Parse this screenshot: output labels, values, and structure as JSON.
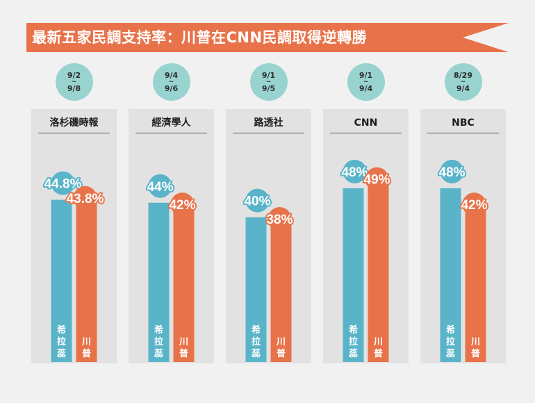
{
  "title": "最新五家民調支持率：川普在CNN民調取得逆轉勝",
  "colors": {
    "clinton": "#5ab4c9",
    "trump": "#e8734a",
    "panel": "#e2e2e2",
    "date_circle": "#99d3d0",
    "title_bar": "#e8734a"
  },
  "chart_data": {
    "type": "bar",
    "title": "最新五家民調支持率：川普在CNN民調取得逆轉勝",
    "xlabel": "",
    "ylabel": "",
    "ylim": [
      0,
      100
    ],
    "grid": false,
    "categories": [
      "洛杉磯時報",
      "經濟學人",
      "路透社",
      "CNN",
      "NBC"
    ],
    "date_ranges": [
      {
        "start": "9/2",
        "sep": "~",
        "end": "9/8"
      },
      {
        "start": "9/4",
        "sep": "~",
        "end": "9/6"
      },
      {
        "start": "9/1",
        "sep": "~",
        "end": "9/5"
      },
      {
        "start": "9/1",
        "sep": "~",
        "end": "9/4"
      },
      {
        "start": "8/29",
        "sep": "~",
        "end": "9/4"
      }
    ],
    "series": [
      {
        "name": "希拉蕊",
        "values": [
          44.8,
          44,
          40,
          48,
          48
        ],
        "labels": [
          "44.8%",
          "44%",
          "40%",
          "48%",
          "48%"
        ]
      },
      {
        "name": "川普",
        "values": [
          43.8,
          42,
          38,
          49,
          42
        ],
        "labels": [
          "43.8%",
          "42%",
          "38%",
          "49%",
          "42%"
        ]
      }
    ]
  }
}
